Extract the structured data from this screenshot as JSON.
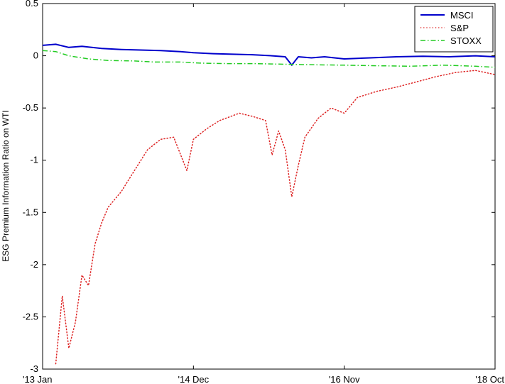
{
  "chart_data": {
    "type": "line",
    "title": "",
    "xlabel": "",
    "ylabel": "ESG Premium Information Ratio on WTI",
    "xlim": [
      "2013-01",
      "2018-10"
    ],
    "ylim": [
      -3,
      0.5
    ],
    "xticks": [
      {
        "date": "2013-01",
        "label": "'13 Jan"
      },
      {
        "date": "2014-12",
        "label": "'14 Dec"
      },
      {
        "date": "2016-11",
        "label": "'16 Nov"
      },
      {
        "date": "2018-10",
        "label": "'18 Oct"
      }
    ],
    "yticks": [
      0.5,
      0,
      -0.5,
      -1,
      -1.5,
      -2,
      -2.5,
      -3
    ],
    "ytick_labels": [
      "0.5",
      "0",
      "-0.5",
      "-1",
      "-1.5",
      "-2",
      "-2.5",
      "-3"
    ],
    "grid": false,
    "legend_position": "top-right",
    "series": [
      {
        "name": "MSCI",
        "color": "#0000cc",
        "style": "solid",
        "points": [
          [
            "2013-01",
            0.1
          ],
          [
            "2013-03",
            0.11
          ],
          [
            "2013-05",
            0.08
          ],
          [
            "2013-07",
            0.09
          ],
          [
            "2013-10",
            0.07
          ],
          [
            "2014-01",
            0.06
          ],
          [
            "2014-04",
            0.055
          ],
          [
            "2014-07",
            0.05
          ],
          [
            "2014-10",
            0.04
          ],
          [
            "2014-12",
            0.03
          ],
          [
            "2015-03",
            0.02
          ],
          [
            "2015-06",
            0.015
          ],
          [
            "2015-09",
            0.01
          ],
          [
            "2015-12",
            0.0
          ],
          [
            "2016-02",
            -0.01
          ],
          [
            "2016-03",
            -0.09
          ],
          [
            "2016-04",
            -0.01
          ],
          [
            "2016-06",
            -0.02
          ],
          [
            "2016-08",
            -0.01
          ],
          [
            "2016-11",
            -0.03
          ],
          [
            "2017-03",
            -0.02
          ],
          [
            "2017-07",
            -0.01
          ],
          [
            "2017-11",
            -0.005
          ],
          [
            "2018-03",
            -0.01
          ],
          [
            "2018-07",
            0.0
          ],
          [
            "2018-10",
            -0.01
          ]
        ]
      },
      {
        "name": "S&P",
        "color": "#dd2222",
        "style": "dotted",
        "points": [
          [
            "2013-03",
            -2.95
          ],
          [
            "2013-04",
            -2.3
          ],
          [
            "2013-05",
            -2.8
          ],
          [
            "2013-06",
            -2.55
          ],
          [
            "2013-07",
            -2.1
          ],
          [
            "2013-08",
            -2.2
          ],
          [
            "2013-09",
            -1.8
          ],
          [
            "2013-10",
            -1.6
          ],
          [
            "2013-11",
            -1.45
          ],
          [
            "2014-01",
            -1.3
          ],
          [
            "2014-03",
            -1.1
          ],
          [
            "2014-05",
            -0.9
          ],
          [
            "2014-07",
            -0.8
          ],
          [
            "2014-09",
            -0.78
          ],
          [
            "2014-11",
            -1.1
          ],
          [
            "2014-12",
            -0.8
          ],
          [
            "2015-02",
            -0.7
          ],
          [
            "2015-04",
            -0.62
          ],
          [
            "2015-07",
            -0.55
          ],
          [
            "2015-09",
            -0.58
          ],
          [
            "2015-11",
            -0.62
          ],
          [
            "2015-12",
            -0.95
          ],
          [
            "2016-01",
            -0.72
          ],
          [
            "2016-02",
            -0.9
          ],
          [
            "2016-03",
            -1.35
          ],
          [
            "2016-04",
            -1.05
          ],
          [
            "2016-05",
            -0.78
          ],
          [
            "2016-07",
            -0.6
          ],
          [
            "2016-09",
            -0.5
          ],
          [
            "2016-11",
            -0.55
          ],
          [
            "2017-01",
            -0.4
          ],
          [
            "2017-04",
            -0.34
          ],
          [
            "2017-07",
            -0.3
          ],
          [
            "2017-10",
            -0.25
          ],
          [
            "2018-01",
            -0.2
          ],
          [
            "2018-04",
            -0.16
          ],
          [
            "2018-07",
            -0.14
          ],
          [
            "2018-10",
            -0.18
          ]
        ]
      },
      {
        "name": "STOXX",
        "color": "#22cc22",
        "style": "dashdot",
        "points": [
          [
            "2013-01",
            0.05
          ],
          [
            "2013-03",
            0.04
          ],
          [
            "2013-05",
            0.0
          ],
          [
            "2013-08",
            -0.03
          ],
          [
            "2013-11",
            -0.045
          ],
          [
            "2014-03",
            -0.05
          ],
          [
            "2014-06",
            -0.06
          ],
          [
            "2014-10",
            -0.06
          ],
          [
            "2015-01",
            -0.07
          ],
          [
            "2015-05",
            -0.075
          ],
          [
            "2015-09",
            -0.075
          ],
          [
            "2016-01",
            -0.08
          ],
          [
            "2016-05",
            -0.085
          ],
          [
            "2016-11",
            -0.09
          ],
          [
            "2017-04",
            -0.095
          ],
          [
            "2017-09",
            -0.1
          ],
          [
            "2018-02",
            -0.09
          ],
          [
            "2018-07",
            -0.1
          ],
          [
            "2018-10",
            -0.11
          ]
        ]
      }
    ]
  }
}
